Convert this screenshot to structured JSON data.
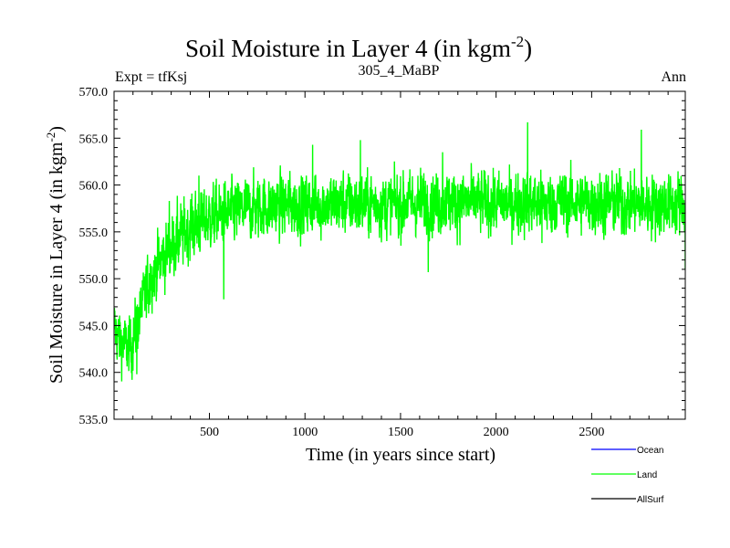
{
  "chart_data": {
    "type": "line",
    "title_main": "Soil Moisture in Layer 4 (in kgm",
    "title_sup": "-2",
    "title_close": ")",
    "subtitle_left": "Expt = tfKsj",
    "subtitle_center": "305_4_MaBP",
    "subtitle_right": "Ann",
    "ylabel_main": "Soil Moisture in Layer 4 (in kgm",
    "ylabel_sup": "-2",
    "ylabel_close": ")",
    "xlabel": "Time (in years since start)",
    "xlim": [
      1,
      2990
    ],
    "ylim": [
      535.0,
      570.0
    ],
    "xticks": [
      500,
      1000,
      1500,
      2000,
      2500
    ],
    "yticks": [
      "535.0",
      "540.0",
      "545.0",
      "550.0",
      "555.0",
      "560.0",
      "565.0",
      "570.0"
    ],
    "legend": [
      {
        "name": "Ocean",
        "color": "#0000ff"
      },
      {
        "name": "Land",
        "color": "#00ff00"
      },
      {
        "name": "AllSurf",
        "color": "#000000"
      }
    ],
    "series": [
      {
        "name": "Land",
        "color": "#00ff00",
        "x_step": 1,
        "anchors": [
          [
            1,
            545.0
          ],
          [
            30,
            543.5
          ],
          [
            80,
            542.5
          ],
          [
            120,
            545.0
          ],
          [
            160,
            548.0
          ],
          [
            200,
            550.5
          ],
          [
            250,
            552.0
          ],
          [
            300,
            553.5
          ],
          [
            350,
            554.5
          ],
          [
            400,
            555.5
          ],
          [
            450,
            556.0
          ],
          [
            500,
            556.5
          ],
          [
            600,
            557.0
          ],
          [
            700,
            557.5
          ],
          [
            900,
            557.8
          ],
          [
            1200,
            558.0
          ],
          [
            1500,
            558.0
          ],
          [
            1800,
            558.2
          ],
          [
            2100,
            558.0
          ],
          [
            2400,
            558.2
          ],
          [
            2700,
            558.0
          ],
          [
            2990,
            558.0
          ]
        ],
        "noise_amplitude": [
          [
            1,
            2.0
          ],
          [
            300,
            2.3
          ],
          [
            600,
            2.2
          ],
          [
            2990,
            2.2
          ]
        ],
        "extremes": [
          [
            95,
            539.2
          ],
          [
            120,
            539.8
          ],
          [
            190,
            551.6
          ],
          [
            290,
            558.3
          ],
          [
            445,
            561.0
          ],
          [
            575,
            547.8
          ],
          [
            1040,
            564.3
          ],
          [
            1290,
            564.8
          ],
          [
            1645,
            550.7
          ],
          [
            1720,
            563.5
          ],
          [
            2165,
            566.7
          ],
          [
            2240,
            553.8
          ],
          [
            2760,
            565.9
          ],
          [
            2990,
            551.0
          ]
        ]
      }
    ]
  }
}
